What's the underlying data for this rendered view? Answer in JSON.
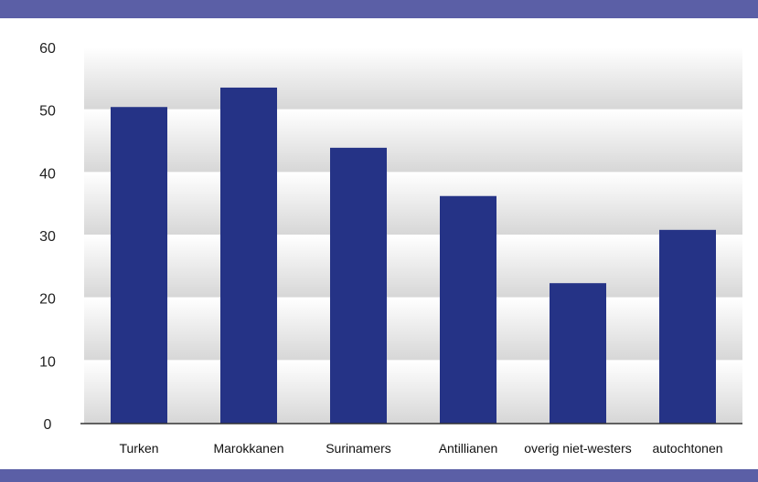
{
  "chart_data": {
    "type": "bar",
    "categories": [
      "Turken",
      "Marokkanen",
      "Surinamers",
      "Antillianen",
      "overig niet-westers",
      "autochtonen"
    ],
    "values": [
      50.5,
      53.6,
      44.0,
      36.3,
      22.4,
      30.9
    ],
    "title": "",
    "xlabel": "",
    "ylabel": "",
    "ylim": [
      0,
      60
    ],
    "yticks": [
      0,
      10,
      20,
      30,
      40,
      50,
      60
    ],
    "grid": true,
    "colors": {
      "bar": "#253386",
      "band": "#5b5fa6",
      "plot_top": "#ffffff",
      "plot_bottom": "#d6d6d6",
      "gridline": "#ffffff",
      "axis": "#333333"
    }
  }
}
